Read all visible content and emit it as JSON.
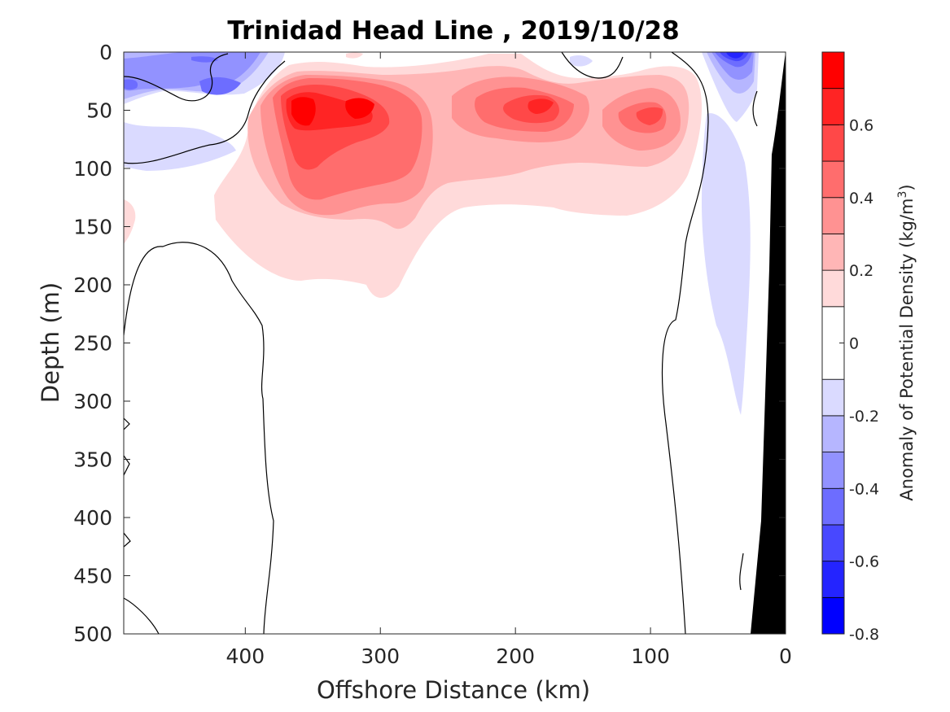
{
  "chart_data": {
    "type": "heatmap",
    "subtype": "filled-contour section",
    "title": "Trinidad Head Line , 2019/10/28",
    "xlabel": "Offshore Distance (km)",
    "ylabel": "Depth (m)",
    "xlim": [
      490,
      0
    ],
    "x_reversed": true,
    "ylim": [
      0,
      500
    ],
    "y_reversed": true,
    "x_ticks": [
      400,
      300,
      200,
      100,
      0
    ],
    "y_ticks": [
      0,
      50,
      100,
      150,
      200,
      250,
      300,
      350,
      400,
      450,
      500
    ],
    "colorbar": {
      "label_main": "Anomaly of Potential Density (kg/m",
      "label_sup": "3",
      "label_end": ")",
      "range": [
        -0.8,
        0.8
      ],
      "levels": [
        -0.8,
        -0.7,
        -0.6,
        -0.5,
        -0.4,
        -0.3,
        -0.2,
        -0.1,
        0.1,
        0.2,
        0.3,
        0.4,
        0.5,
        0.6,
        0.7,
        0.8
      ],
      "tick_values": [
        0.6,
        0.4,
        0.2,
        0,
        -0.2,
        -0.4,
        -0.6,
        -0.8
      ],
      "tick_labels": [
        "0.6",
        "0.4",
        "0.2",
        "0",
        "-0.2",
        "-0.4",
        "-0.6",
        "-0.8"
      ],
      "colors_low_to_high": [
        "#0000ff",
        "#2424ff",
        "#4848ff",
        "#6d6dff",
        "#9292ff",
        "#b6b6ff",
        "#dadaff",
        "#ffffff",
        "#ffdada",
        "#ffb6b6",
        "#ff9292",
        "#ff6d6d",
        "#ff4848",
        "#ff2424",
        "#ff0000"
      ]
    },
    "features": [
      {
        "name": "dense-core-1",
        "x": 340,
        "depth": 50,
        "anomaly": 0.75
      },
      {
        "name": "dense-core-2",
        "x": 305,
        "depth": 50,
        "anomaly": 0.7
      },
      {
        "name": "dense-patch-3",
        "x": 185,
        "depth": 50,
        "anomaly": 0.55
      },
      {
        "name": "dense-patch-4",
        "x": 100,
        "depth": 55,
        "anomaly": 0.5
      },
      {
        "name": "light-surface-offshore",
        "x": 430,
        "depth": 30,
        "anomaly": -0.45
      },
      {
        "name": "light-surface-coastal",
        "x": 40,
        "depth": 5,
        "anomaly": -0.65
      },
      {
        "name": "light-nearshore-column",
        "x": 45,
        "depth": 200,
        "anomaly": -0.15
      }
    ],
    "zero_contour": "black line",
    "bathymetry": "black fill at 0-25 km"
  }
}
